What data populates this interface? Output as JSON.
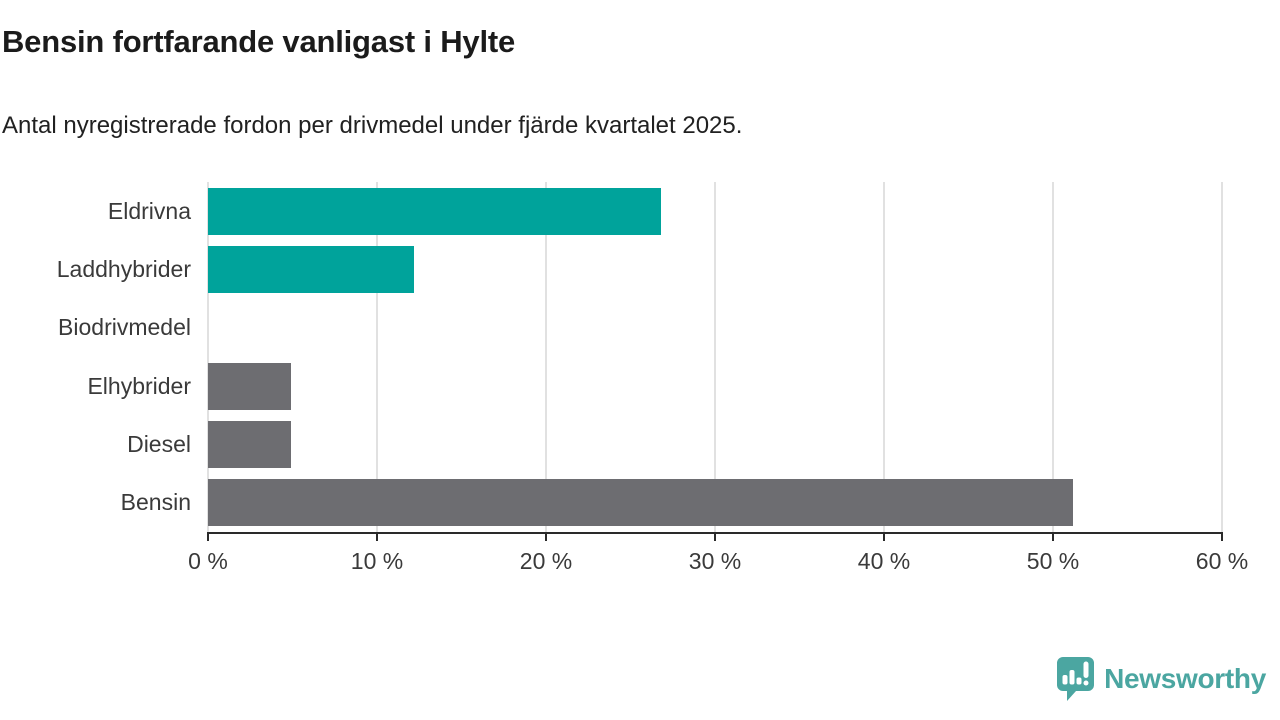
{
  "header": {
    "title": "Bensin fortfarande vanligast i Hylte",
    "subtitle": "Antal nyregistrerade fordon per drivmedel under fjärde kvartalet 2025."
  },
  "chart_data": {
    "type": "bar",
    "orientation": "horizontal",
    "title": "Bensin fortfarande vanligast i Hylte",
    "subtitle": "Antal nyregistrerade fordon per drivmedel under fjärde kvartalet 2025.",
    "categories": [
      "Eldrivna",
      "Laddhybrider",
      "Biodrivmedel",
      "Elhybrider",
      "Diesel",
      "Bensin"
    ],
    "values": [
      26.8,
      12.2,
      0,
      4.9,
      4.9,
      51.2
    ],
    "bar_colors": [
      "#00a39b",
      "#00a39b",
      "#00a39b",
      "#6d6d71",
      "#6d6d71",
      "#6d6d71"
    ],
    "xlabel": "",
    "ylabel": "",
    "xlim": [
      0,
      60
    ],
    "x_ticks": [
      0,
      10,
      20,
      30,
      40,
      50,
      60
    ],
    "x_tick_labels": [
      "0 %",
      "10 %",
      "20 %",
      "30 %",
      "40 %",
      "50 %",
      "60 %"
    ],
    "grid": true,
    "legend": false
  },
  "colors": {
    "teal": "#00a39b",
    "gray": "#6d6d71",
    "gridline": "#e1e1e1",
    "axis": "#2a2a2a",
    "title_text": "#1b1b1b",
    "label_text": "#3a3a3a",
    "logo": "#4ba6a1",
    "background": "#ffffff"
  },
  "footer": {
    "brand": "Newsworthy"
  }
}
